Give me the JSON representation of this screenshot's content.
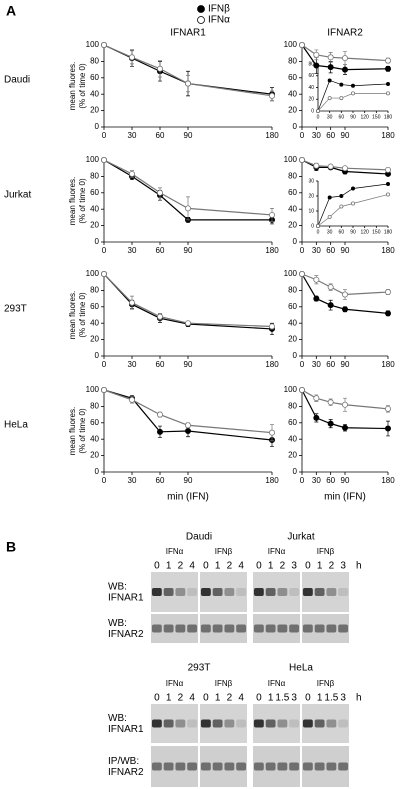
{
  "panel_a": {
    "label": "A"
  },
  "panel_b": {
    "label": "B",
    "sets": [
      {
        "unit": "h",
        "rows": [
          [
            "WB:",
            "IFNAR1"
          ],
          [
            "WB:",
            "IFNAR2"
          ]
        ],
        "blots": [
          {
            "cell": "Daudi",
            "groups": [
              {
                "treatment": "IFNα",
                "lanes": [
                  "0",
                  "1",
                  "2",
                  "4"
                ]
              },
              {
                "treatment": "IFNβ",
                "lanes": [
                  "0",
                  "1",
                  "2",
                  "4"
                ]
              }
            ]
          },
          {
            "cell": "Jurkat",
            "groups": [
              {
                "treatment": "IFNα",
                "lanes": [
                  "0",
                  "1",
                  "2",
                  "3"
                ]
              },
              {
                "treatment": "IFNβ",
                "lanes": [
                  "0",
                  "1",
                  "2",
                  "3"
                ]
              }
            ]
          }
        ]
      },
      {
        "unit": "h",
        "rows": [
          [
            "WB:",
            "IFNAR1"
          ],
          [
            "IP/WB:",
            "IFNAR2"
          ]
        ],
        "blots": [
          {
            "cell": "293T",
            "groups": [
              {
                "treatment": "IFNα",
                "lanes": [
                  "0",
                  "1",
                  "2",
                  "4"
                ]
              },
              {
                "treatment": "IFNβ",
                "lanes": [
                  "0",
                  "1",
                  "2",
                  "4"
                ]
              }
            ]
          },
          {
            "cell": "HeLa",
            "groups": [
              {
                "treatment": "IFNα",
                "lanes": [
                  "0",
                  "1",
                  "1.5",
                  "3"
                ]
              },
              {
                "treatment": "IFNβ",
                "lanes": [
                  "0",
                  "1",
                  "1.5",
                  "3"
                ]
              }
            ]
          }
        ]
      }
    ]
  },
  "chart_data": [
    {
      "type": "line",
      "title": "IFNAR1",
      "row_label": "Daudi",
      "ylabel": [
        "mean fluores.",
        "(% of time 0)"
      ],
      "x": [
        0,
        30,
        60,
        90,
        180
      ],
      "xlim": [
        0,
        180
      ],
      "xticks": [
        0,
        30,
        60,
        90,
        180
      ],
      "ylim": [
        0,
        100
      ],
      "yticks": [
        0,
        20,
        40,
        60,
        80,
        100
      ],
      "series": [
        {
          "name": "IFNβ",
          "color": "#000000",
          "marker_fill": "#000000",
          "values": [
            100,
            84,
            68,
            53,
            40
          ],
          "errors": [
            0,
            10,
            12,
            15,
            8
          ]
        },
        {
          "name": "IFNα",
          "color": "#777777",
          "marker_fill": "#ffffff",
          "values": [
            100,
            85,
            71,
            53,
            38
          ],
          "errors": [
            0,
            8,
            10,
            10,
            6
          ]
        }
      ]
    },
    {
      "type": "line",
      "title": "IFNAR2",
      "x": [
        0,
        30,
        60,
        90,
        180
      ],
      "xlim": [
        0,
        180
      ],
      "xticks": [
        0,
        30,
        60,
        90,
        180
      ],
      "ylim": [
        0,
        100
      ],
      "yticks": [
        0,
        20,
        40,
        60,
        80,
        100
      ],
      "series": [
        {
          "color": "#000000",
          "marker_fill": "#000000",
          "values": [
            100,
            75,
            73,
            70,
            71
          ],
          "errors": [
            0,
            10,
            7,
            6,
            3
          ]
        },
        {
          "color": "#777777",
          "marker_fill": "#ffffff",
          "values": [
            100,
            88,
            85,
            84,
            81
          ],
          "errors": [
            0,
            6,
            6,
            8,
            3
          ]
        }
      ]
    },
    {
      "type": "line",
      "inset": true,
      "x": [
        0,
        30,
        60,
        90,
        180
      ],
      "xlim": [
        0,
        180
      ],
      "xticks": [
        0,
        30,
        60,
        90,
        120,
        150,
        180
      ],
      "ylim": [
        0,
        80
      ],
      "yticks": [
        0,
        20,
        40,
        60,
        80
      ],
      "series": [
        {
          "color": "#000000",
          "marker_fill": "#000000",
          "values": [
            0,
            52,
            45,
            43,
            46
          ]
        },
        {
          "color": "#777777",
          "marker_fill": "#ffffff",
          "values": [
            0,
            22,
            22,
            30,
            30
          ]
        }
      ]
    },
    {
      "type": "line",
      "row_label": "Jurkat",
      "ylabel": [
        "mean fluores.",
        "(% of time 0)"
      ],
      "x": [
        0,
        30,
        60,
        90,
        180
      ],
      "xlim": [
        0,
        180
      ],
      "xticks": [
        0,
        30,
        60,
        90,
        180
      ],
      "ylim": [
        0,
        100
      ],
      "yticks": [
        0,
        20,
        40,
        60,
        80,
        100
      ],
      "series": [
        {
          "color": "#000000",
          "marker_fill": "#000000",
          "values": [
            100,
            80,
            57,
            27,
            27
          ],
          "errors": [
            0,
            4,
            6,
            3,
            5
          ]
        },
        {
          "color": "#777777",
          "marker_fill": "#ffffff",
          "values": [
            100,
            83,
            60,
            41,
            33
          ],
          "errors": [
            0,
            4,
            6,
            14,
            8
          ]
        }
      ]
    },
    {
      "type": "line",
      "x": [
        0,
        30,
        60,
        90,
        180
      ],
      "xlim": [
        0,
        180
      ],
      "xticks": [
        0,
        30,
        60,
        90,
        180
      ],
      "ylim": [
        0,
        100
      ],
      "yticks": [
        0,
        20,
        40,
        60,
        80,
        100
      ],
      "series": [
        {
          "color": "#000000",
          "marker_fill": "#000000",
          "values": [
            100,
            91,
            91,
            86,
            83
          ],
          "errors": [
            0,
            4,
            2,
            3,
            2
          ]
        },
        {
          "color": "#777777",
          "marker_fill": "#ffffff",
          "values": [
            100,
            93,
            92,
            90,
            88
          ],
          "errors": [
            0,
            3,
            2,
            2,
            2
          ]
        }
      ]
    },
    {
      "type": "line",
      "inset": true,
      "x": [
        0,
        30,
        60,
        90,
        180
      ],
      "xlim": [
        0,
        180
      ],
      "xticks": [
        0,
        30,
        60,
        90,
        120,
        150,
        180
      ],
      "ylim": [
        0,
        30
      ],
      "yticks": [
        0,
        10,
        20,
        30
      ],
      "series": [
        {
          "color": "#000000",
          "marker_fill": "#000000",
          "values": [
            0,
            19,
            20,
            25,
            28
          ]
        },
        {
          "color": "#777777",
          "marker_fill": "#ffffff",
          "values": [
            0,
            6,
            13,
            15,
            21
          ]
        }
      ]
    },
    {
      "type": "line",
      "row_label": "293T",
      "ylabel": [
        "mean fluores.",
        "(% of time 0)"
      ],
      "x": [
        0,
        30,
        60,
        90,
        180
      ],
      "xlim": [
        0,
        180
      ],
      "xticks": [
        0,
        30,
        60,
        90,
        180
      ],
      "ylim": [
        0,
        100
      ],
      "yticks": [
        0,
        20,
        40,
        60,
        80,
        100
      ],
      "series": [
        {
          "color": "#000000",
          "marker_fill": "#000000",
          "values": [
            100,
            63,
            46,
            39,
            33
          ],
          "errors": [
            0,
            5,
            5,
            3,
            7
          ]
        },
        {
          "color": "#777777",
          "marker_fill": "#ffffff",
          "values": [
            100,
            65,
            48,
            40,
            36
          ],
          "errors": [
            0,
            8,
            4,
            2,
            3
          ]
        }
      ]
    },
    {
      "type": "line",
      "x": [
        0,
        30,
        60,
        90,
        180
      ],
      "xlim": [
        0,
        180
      ],
      "xticks": [
        0,
        30,
        60,
        90,
        180
      ],
      "ylim": [
        0,
        100
      ],
      "yticks": [
        0,
        20,
        40,
        60,
        80,
        100
      ],
      "series": [
        {
          "color": "#000000",
          "marker_fill": "#000000",
          "values": [
            100,
            70,
            62,
            57,
            52
          ],
          "errors": [
            0,
            3,
            6,
            3,
            3
          ]
        },
        {
          "color": "#777777",
          "marker_fill": "#ffffff",
          "values": [
            100,
            93,
            84,
            75,
            78
          ],
          "errors": [
            0,
            5,
            4,
            6,
            3
          ]
        }
      ]
    },
    {
      "type": "line",
      "row_label": "HeLa",
      "ylabel": [
        "mean fluores.",
        "(% of time 0)"
      ],
      "xlabel": "min (IFN)",
      "x": [
        0,
        30,
        60,
        90,
        180
      ],
      "xlim": [
        0,
        180
      ],
      "xticks": [
        0,
        30,
        60,
        90,
        180
      ],
      "ylim": [
        0,
        100
      ],
      "yticks": [
        0,
        20,
        40,
        60,
        80,
        100
      ],
      "series": [
        {
          "color": "#000000",
          "marker_fill": "#000000",
          "values": [
            100,
            90,
            49,
            50,
            39
          ],
          "errors": [
            0,
            3,
            7,
            7,
            8
          ]
        },
        {
          "color": "#777777",
          "marker_fill": "#ffffff",
          "values": [
            100,
            88,
            70,
            57,
            48
          ],
          "errors": [
            0,
            4,
            3,
            3,
            10
          ]
        }
      ]
    },
    {
      "type": "line",
      "xlabel": "min (IFN)",
      "x": [
        0,
        30,
        60,
        90,
        180
      ],
      "xlim": [
        0,
        180
      ],
      "xticks": [
        0,
        30,
        60,
        90,
        180
      ],
      "ylim": [
        0,
        100
      ],
      "yticks": [
        0,
        20,
        40,
        60,
        80,
        100
      ],
      "series": [
        {
          "color": "#000000",
          "marker_fill": "#000000",
          "values": [
            100,
            66,
            59,
            54,
            53
          ],
          "errors": [
            0,
            5,
            5,
            4,
            9
          ]
        },
        {
          "color": "#777777",
          "marker_fill": "#ffffff",
          "values": [
            100,
            90,
            85,
            82,
            77
          ],
          "errors": [
            0,
            4,
            4,
            8,
            4
          ]
        }
      ]
    }
  ]
}
